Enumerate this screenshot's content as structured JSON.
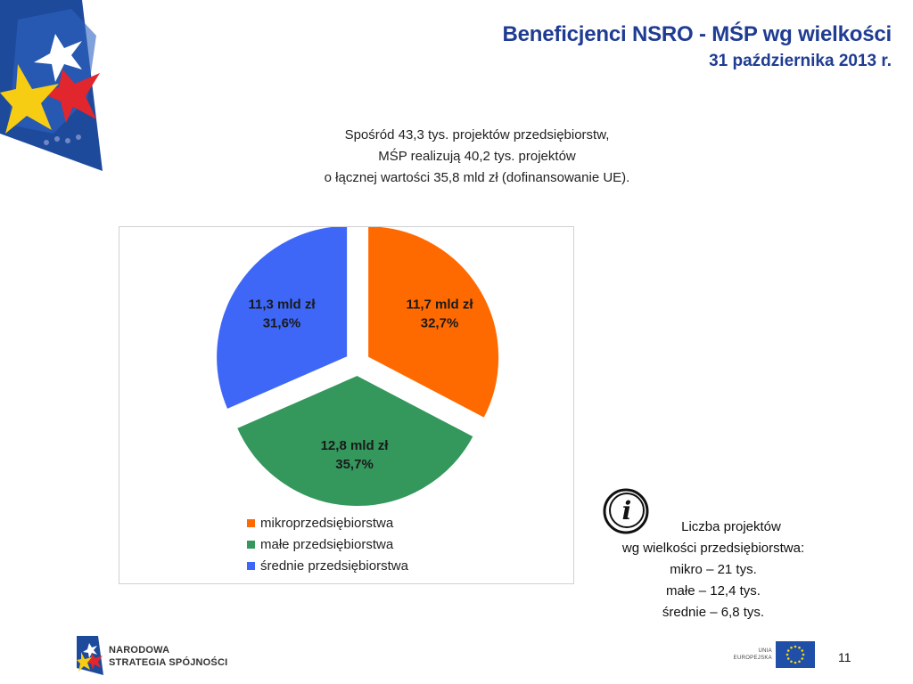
{
  "header": {
    "title": "Beneficjenci NSRO - MŚP wg wielkości",
    "subtitle": "31 października 2013 r."
  },
  "intro_lines": [
    "Spośród 43,3 tys. projektów przedsiębiorstw,",
    "MŚP realizują 40,2 tys. projektów",
    "o łącznej wartości 35,8 mld zł (dofinansowanie UE)."
  ],
  "chart_data": {
    "type": "pie",
    "title": "",
    "slices": [
      {
        "name": "mikroprzedsiębiorstwa",
        "value": 11.7,
        "percent": 32.7,
        "value_label": "11,7 mld zł",
        "percent_label": "32,7%",
        "color": "#ff6a00"
      },
      {
        "name": "małe przedsiębiorstwa",
        "value": 12.8,
        "percent": 35.7,
        "value_label": "12,8 mld zł",
        "percent_label": "35,7%",
        "color": "#34975c"
      },
      {
        "name": "średnie przedsiębiorstwa",
        "value": 11.3,
        "percent": 31.6,
        "value_label": "11,3 mld zł",
        "percent_label": "31,6%",
        "color": "#3e67f7"
      }
    ],
    "exploded": true,
    "legend_position": "bottom-left"
  },
  "info": {
    "icon": "info-icon",
    "lines": [
      "Liczba projektów",
      "wg wielkości przedsiębiorstwa:",
      "mikro – 21 tys.",
      "małe – 12,4 tys.",
      "średnie – 6,8 tys."
    ]
  },
  "footer": {
    "logo_line1": "NARODOWA",
    "logo_line2": "STRATEGIA SPÓJNOŚCI",
    "eu_line1": "UNIA",
    "eu_line2": "EUROPEJSKA",
    "page_number": "11"
  }
}
